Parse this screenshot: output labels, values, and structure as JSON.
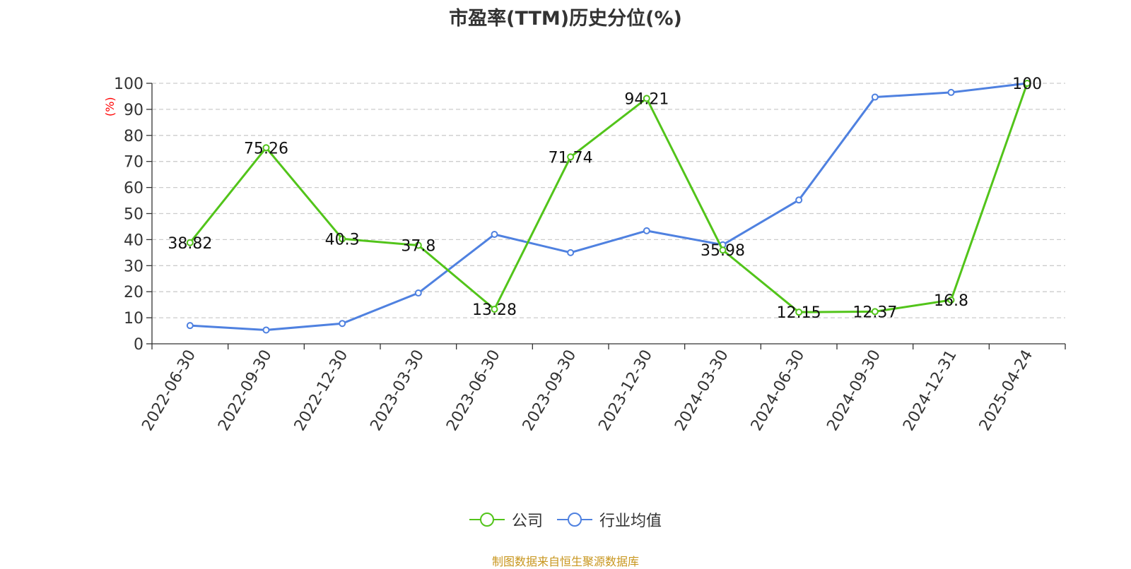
{
  "chart_data": {
    "type": "line",
    "title": "市盈率(TTM)历史分位(%)",
    "ylabel": "(%)",
    "ylim": [
      0,
      100
    ],
    "yticks": [
      0,
      10,
      20,
      30,
      40,
      50,
      60,
      70,
      80,
      90,
      100
    ],
    "grid": true,
    "legend_position": "bottom",
    "categories": [
      "2022-06-30",
      "2022-09-30",
      "2022-12-30",
      "2023-03-30",
      "2023-06-30",
      "2023-09-30",
      "2023-12-30",
      "2024-03-30",
      "2024-06-30",
      "2024-09-30",
      "2024-12-31",
      "2025-04-24"
    ],
    "series": [
      {
        "name": "公司",
        "color": "#52c41a",
        "values": [
          38.82,
          75.26,
          40.3,
          37.8,
          13.28,
          71.74,
          94.21,
          35.98,
          12.15,
          12.37,
          16.8,
          100
        ],
        "labels": [
          "38.82",
          "75.26",
          "40.3",
          "37.8",
          "13.28",
          "71.74",
          "94.21",
          "35.98",
          "12.15",
          "12.37",
          "16.8",
          "100"
        ]
      },
      {
        "name": "行业均值",
        "color": "#4f81e0",
        "values": [
          7,
          5.3,
          7.8,
          19.5,
          42,
          35,
          43.4,
          38,
          55.2,
          94.7,
          96.5,
          100
        ]
      }
    ]
  },
  "footer": {
    "source": "制图数据来自恒生聚源数据库"
  },
  "colors": {
    "axis": "#333333",
    "grid": "#cccccc",
    "ylabel": "#ff0000",
    "source": "#c8961e"
  }
}
